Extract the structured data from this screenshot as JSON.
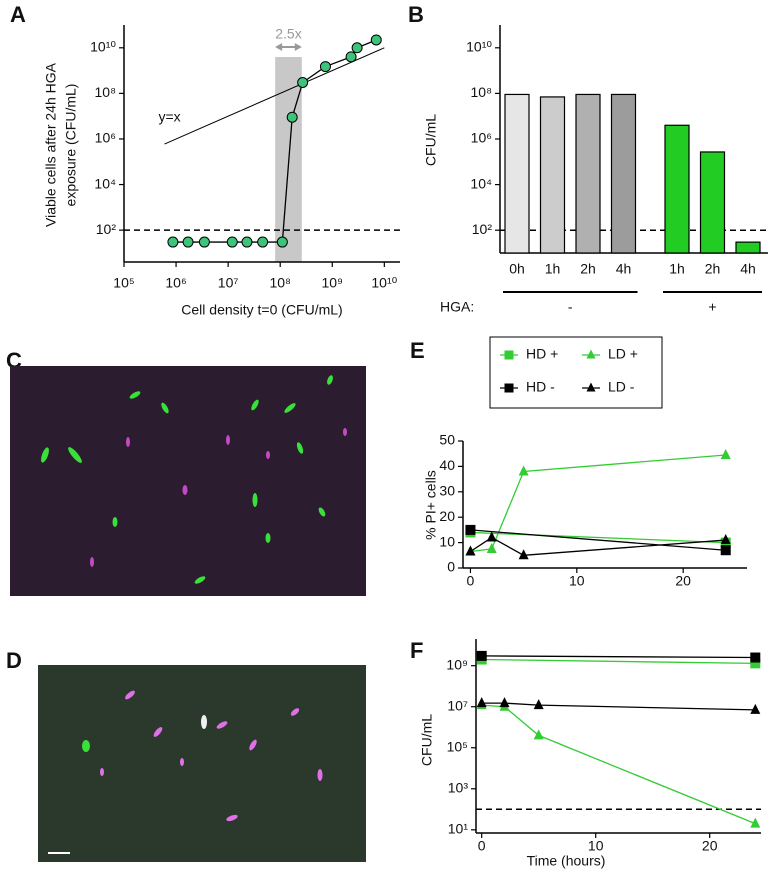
{
  "chart_data": [
    {
      "panel": "A",
      "type": "scatter",
      "log_x": true,
      "log_y": true,
      "x_label": "Cell density t=0 (CFU/mL)",
      "y_label": [
        "Viable cells after 24h HGA",
        "exposure (CFU/mL)"
      ],
      "xlim": [
        100000,
        20000000000
      ],
      "ylim": [
        4,
        100000000000
      ],
      "xticks": [
        {
          "value": 100000,
          "label": "10⁵"
        },
        {
          "value": 1000000,
          "label": "10⁶"
        },
        {
          "value": 10000000,
          "label": "10⁷"
        },
        {
          "value": 100000000,
          "label": "10⁸"
        },
        {
          "value": 1000000000,
          "label": "10⁹"
        },
        {
          "value": 10000000000,
          "label": "10¹⁰"
        }
      ],
      "yticks": [
        {
          "value": 100,
          "label": "10²"
        },
        {
          "value": 10000,
          "label": "10⁴"
        },
        {
          "value": 1000000,
          "label": "10⁶"
        },
        {
          "value": 100000000,
          "label": "10⁸"
        },
        {
          "value": 10000000000,
          "label": "10¹⁰"
        }
      ],
      "x": [
        870000,
        1700000,
        3500000,
        12000000,
        23000000,
        46000000,
        110000000,
        170000000,
        270000000,
        740000000,
        2300000000,
        3000000000,
        7000000000
      ],
      "values": [
        30,
        30,
        30,
        30,
        30,
        30,
        30,
        9000000,
        300000000,
        1500000000,
        4000000000,
        10000000000,
        22000000000
      ],
      "color": "#3ec47a",
      "marker": "circle",
      "line_color": "#000000",
      "threshold": 100,
      "band": [
        80000000,
        260000000
      ],
      "band_color": "#c8c8c8",
      "band_label": "2.5x",
      "reference_line": {
        "label": "y=x",
        "x": [
          600000,
          10000000000
        ]
      }
    },
    {
      "panel": "B",
      "type": "bar",
      "log_y": true,
      "y_label": "CFU/mL",
      "ylim": [
        10,
        100000000000
      ],
      "yticks": [
        {
          "value": 100,
          "label": "10²"
        },
        {
          "value": 10000,
          "label": "10⁴"
        },
        {
          "value": 1000000,
          "label": "10⁶"
        },
        {
          "value": 100000000,
          "label": "10⁸"
        },
        {
          "value": 10000000000,
          "label": "10¹⁰"
        }
      ],
      "categories": [
        "0h",
        "1h",
        "2h",
        "4h",
        "1h",
        "2h",
        "4h"
      ],
      "values": [
        90000000,
        70000000,
        90000000,
        90000000,
        4000000,
        270000,
        30
      ],
      "colors": [
        "#e6e6e6",
        "#cccccc",
        "#b0b0b0",
        "#9c9c9c",
        "#22cc22",
        "#22cc22",
        "#22cc22"
      ],
      "group_title": "HGA:",
      "group": [
        "-",
        "-",
        "-",
        "-",
        "+",
        "+",
        "+"
      ],
      "threshold": 100
    },
    {
      "panel": "E",
      "type": "line",
      "y_label": "% PI+ cells",
      "legend": true,
      "xlim": [
        -0.7,
        26
      ],
      "ylim": [
        0,
        50
      ],
      "xticks": [
        0,
        10,
        20
      ],
      "yticks": [
        0,
        10,
        20,
        30,
        40,
        50
      ],
      "series": [
        {
          "name": "HD +",
          "color": "#33cc33",
          "marker": "square",
          "x": [
            0,
            24
          ],
          "values": [
            14,
            10
          ]
        },
        {
          "name": "LD +",
          "color": "#33cc33",
          "marker": "triangle",
          "x": [
            0,
            2,
            5,
            24
          ],
          "values": [
            6.5,
            7.5,
            38,
            44.5
          ]
        },
        {
          "name": "HD -",
          "color": "#000000",
          "marker": "square",
          "x": [
            0,
            24
          ],
          "values": [
            15,
            7
          ]
        },
        {
          "name": "LD -",
          "color": "#000000",
          "marker": "triangle",
          "x": [
            0,
            2,
            5,
            24
          ],
          "values": [
            6.5,
            12,
            5,
            11
          ]
        }
      ]
    },
    {
      "panel": "F",
      "type": "line",
      "log_y": true,
      "y_label": "CFU/mL",
      "x_label": "Time (hours)",
      "xlim": [
        -0.5,
        24.5
      ],
      "ylim": [
        7,
        20000000000
      ],
      "xticks": [
        0,
        10,
        20
      ],
      "yticks": [
        {
          "value": 10,
          "label": "10¹"
        },
        {
          "value": 1000,
          "label": "10³"
        },
        {
          "value": 100000,
          "label": "10⁵"
        },
        {
          "value": 10000000,
          "label": "10⁷"
        },
        {
          "value": 1000000000,
          "label": "10⁹"
        }
      ],
      "threshold": 100,
      "series": [
        {
          "color": "#33cc33",
          "marker": "square",
          "x": [
            0,
            24
          ],
          "values": [
            2000000000,
            1300000000
          ]
        },
        {
          "color": "#33cc33",
          "marker": "triangle",
          "x": [
            0,
            2,
            5,
            24
          ],
          "values": [
            12000000,
            10000000,
            400000,
            20
          ]
        },
        {
          "color": "#000000",
          "marker": "square",
          "x": [
            0,
            24
          ],
          "values": [
            3000000000,
            2500000000
          ]
        },
        {
          "color": "#000000",
          "marker": "triangle",
          "x": [
            0,
            2,
            5,
            24
          ],
          "values": [
            15000000,
            15000000,
            12000000,
            7000000
          ]
        }
      ]
    }
  ],
  "images": [
    {
      "label": "C"
    },
    {
      "label": "D"
    }
  ]
}
